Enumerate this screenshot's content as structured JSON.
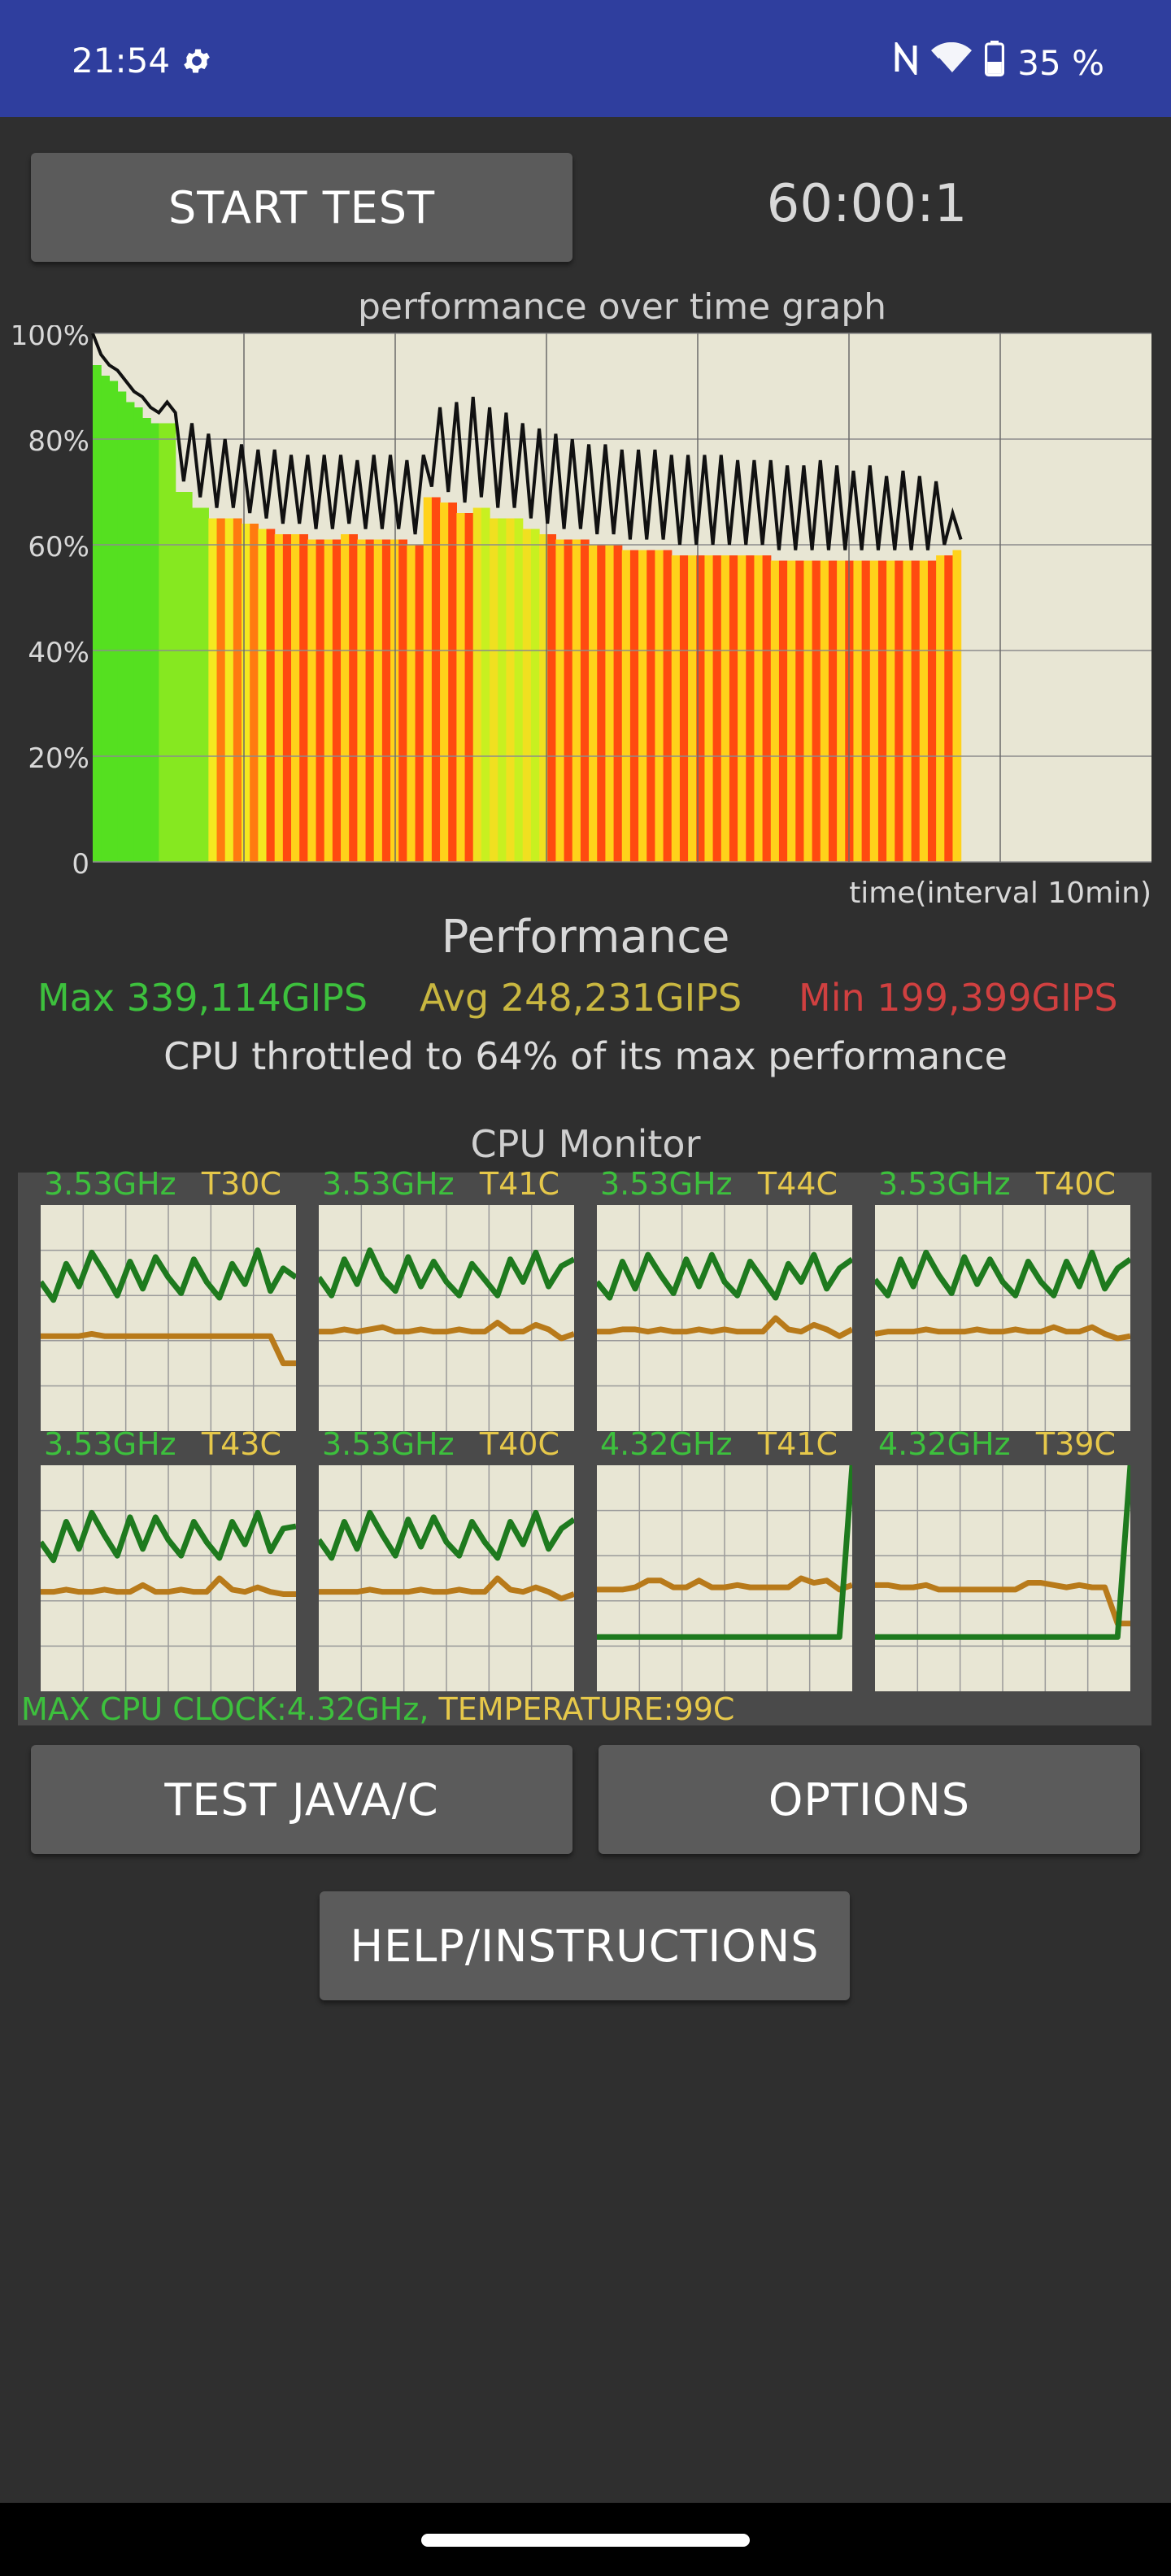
{
  "status": {
    "time": "21:54",
    "battery": "35 %",
    "icons": [
      "gear-icon",
      "nfc-icon",
      "wifi-icon",
      "battery-icon"
    ]
  },
  "controls": {
    "start_label": "START TEST",
    "timer": "60:00:1"
  },
  "graph": {
    "title": "performance over time graph",
    "xlabel": "time(interval 10min)"
  },
  "chart_data": {
    "type": "area",
    "title": "performance over time graph",
    "xlabel": "time(interval 10min)",
    "ylabel": "",
    "y_ticks": [
      "100%",
      "80%",
      "60%",
      "40%",
      "20%",
      "0"
    ],
    "ylim": [
      0,
      100
    ],
    "x_grid_intervals": 7,
    "series": [
      {
        "values": [
          100,
          96,
          94,
          93,
          91,
          89,
          88,
          86,
          85,
          87,
          85,
          72,
          83,
          69,
          81,
          67,
          80,
          67,
          79,
          66,
          78,
          65,
          78,
          64,
          77,
          64,
          77,
          63,
          77,
          63,
          77,
          64,
          76,
          63,
          77,
          63,
          77,
          63,
          76,
          62,
          77,
          71,
          86,
          70,
          87,
          68,
          88,
          69,
          86,
          67,
          85,
          67,
          83,
          65,
          82,
          64,
          81,
          63,
          80,
          63,
          79,
          62,
          79,
          62,
          78,
          61,
          78,
          61,
          78,
          61,
          77,
          60,
          77,
          60,
          77,
          60,
          77,
          60,
          76,
          60,
          76,
          60,
          76,
          59,
          75,
          59,
          75,
          59,
          76,
          59,
          75,
          59,
          74,
          59,
          75,
          59,
          73,
          59,
          74,
          59,
          73,
          59,
          72,
          60,
          66,
          61
        ]
      }
    ],
    "bar_value_scale": {
      "max": "339,114GIPS",
      "avg": "248,231GIPS",
      "min": "199,399GIPS"
    },
    "grid": true,
    "legend": "none"
  },
  "performance": {
    "heading": "Performance",
    "max": "Max 339,114GIPS",
    "avg": "Avg 248,231GIPS",
    "min": "Min 199,399GIPS",
    "throttle": "CPU throttled to 64% of its max performance"
  },
  "cpu_monitor": {
    "title": "CPU Monitor",
    "cores": [
      {
        "freq": "3.53GHz",
        "temp": "T30C",
        "green": [
          0.66,
          0.58,
          0.74,
          0.64,
          0.79,
          0.7,
          0.6,
          0.75,
          0.63,
          0.77,
          0.68,
          0.61,
          0.76,
          0.66,
          0.59,
          0.74,
          0.65,
          0.8,
          0.62,
          0.72,
          0.68
        ],
        "orange": [
          0.42,
          0.42,
          0.42,
          0.42,
          0.43,
          0.42,
          0.42,
          0.42,
          0.42,
          0.42,
          0.42,
          0.42,
          0.42,
          0.42,
          0.42,
          0.42,
          0.42,
          0.42,
          0.42,
          0.3,
          0.3
        ]
      },
      {
        "freq": "3.53GHz",
        "temp": "T41C",
        "green": [
          0.68,
          0.6,
          0.76,
          0.65,
          0.8,
          0.68,
          0.62,
          0.77,
          0.64,
          0.75,
          0.66,
          0.6,
          0.74,
          0.67,
          0.6,
          0.76,
          0.66,
          0.79,
          0.64,
          0.73,
          0.76
        ],
        "orange": [
          0.44,
          0.44,
          0.45,
          0.44,
          0.45,
          0.46,
          0.44,
          0.44,
          0.45,
          0.44,
          0.44,
          0.45,
          0.44,
          0.44,
          0.48,
          0.44,
          0.44,
          0.47,
          0.45,
          0.41,
          0.43
        ]
      },
      {
        "freq": "3.53GHz",
        "temp": "T44C",
        "green": [
          0.66,
          0.59,
          0.75,
          0.63,
          0.78,
          0.69,
          0.61,
          0.76,
          0.64,
          0.78,
          0.66,
          0.6,
          0.75,
          0.67,
          0.59,
          0.74,
          0.66,
          0.78,
          0.63,
          0.72,
          0.76
        ],
        "orange": [
          0.44,
          0.44,
          0.45,
          0.45,
          0.44,
          0.45,
          0.44,
          0.44,
          0.45,
          0.44,
          0.45,
          0.44,
          0.44,
          0.44,
          0.5,
          0.45,
          0.44,
          0.47,
          0.45,
          0.42,
          0.45
        ]
      },
      {
        "freq": "3.53GHz",
        "temp": "T40C",
        "green": [
          0.67,
          0.6,
          0.76,
          0.64,
          0.79,
          0.69,
          0.61,
          0.77,
          0.65,
          0.76,
          0.66,
          0.6,
          0.75,
          0.66,
          0.6,
          0.75,
          0.64,
          0.79,
          0.63,
          0.72,
          0.76
        ],
        "orange": [
          0.43,
          0.44,
          0.44,
          0.44,
          0.45,
          0.44,
          0.44,
          0.44,
          0.45,
          0.44,
          0.44,
          0.45,
          0.44,
          0.44,
          0.46,
          0.44,
          0.44,
          0.46,
          0.43,
          0.41,
          0.42
        ]
      },
      {
        "freq": "3.53GHz",
        "temp": "T43C",
        "green": [
          0.66,
          0.58,
          0.75,
          0.63,
          0.79,
          0.69,
          0.6,
          0.77,
          0.63,
          0.77,
          0.67,
          0.6,
          0.75,
          0.66,
          0.59,
          0.75,
          0.65,
          0.79,
          0.62,
          0.72,
          0.73
        ],
        "orange": [
          0.44,
          0.44,
          0.45,
          0.44,
          0.44,
          0.45,
          0.44,
          0.44,
          0.47,
          0.44,
          0.44,
          0.45,
          0.44,
          0.44,
          0.5,
          0.45,
          0.44,
          0.46,
          0.44,
          0.43,
          0.43
        ]
      },
      {
        "freq": "3.53GHz",
        "temp": "T40C",
        "green": [
          0.67,
          0.59,
          0.75,
          0.63,
          0.79,
          0.69,
          0.6,
          0.76,
          0.64,
          0.77,
          0.66,
          0.6,
          0.75,
          0.66,
          0.59,
          0.75,
          0.65,
          0.79,
          0.63,
          0.72,
          0.76
        ],
        "orange": [
          0.44,
          0.44,
          0.44,
          0.44,
          0.45,
          0.44,
          0.44,
          0.44,
          0.45,
          0.44,
          0.44,
          0.45,
          0.44,
          0.44,
          0.5,
          0.45,
          0.44,
          0.46,
          0.44,
          0.41,
          0.43
        ]
      },
      {
        "freq": "4.32GHz",
        "temp": "T41C",
        "green": [
          0.24,
          0.24,
          0.24,
          0.24,
          0.24,
          0.24,
          0.24,
          0.24,
          0.24,
          0.24,
          0.24,
          0.24,
          0.24,
          0.24,
          0.24,
          0.24,
          0.24,
          0.24,
          0.24,
          0.24,
          1.0
        ],
        "orange": [
          0.45,
          0.45,
          0.45,
          0.46,
          0.49,
          0.49,
          0.46,
          0.46,
          0.49,
          0.46,
          0.46,
          0.47,
          0.46,
          0.46,
          0.46,
          0.46,
          0.5,
          0.48,
          0.49,
          0.45,
          0.47
        ]
      },
      {
        "freq": "4.32GHz",
        "temp": "T39C",
        "green": [
          0.24,
          0.24,
          0.24,
          0.24,
          0.24,
          0.24,
          0.24,
          0.24,
          0.24,
          0.24,
          0.24,
          0.24,
          0.24,
          0.24,
          0.24,
          0.24,
          0.24,
          0.24,
          0.24,
          0.24,
          1.0
        ],
        "orange": [
          0.47,
          0.47,
          0.46,
          0.46,
          0.47,
          0.45,
          0.45,
          0.45,
          0.45,
          0.45,
          0.45,
          0.45,
          0.48,
          0.48,
          0.47,
          0.46,
          0.47,
          0.46,
          0.46,
          0.3,
          0.3
        ]
      }
    ],
    "max_clock": "MAX CPU CLOCK:4.32GHz,",
    "temperature": "TEMPERATURE:99C"
  },
  "buttons": {
    "java_label": "TEST JAVA/C",
    "options_label": "OPTIONS",
    "help_label": "HELP/INSTRUCTIONS"
  },
  "colors": {
    "status_bar": "#2f3e9e",
    "background": "#2f2f2f",
    "button": "#5b5b5b",
    "max": "#3dc03d",
    "avg": "#c8b640",
    "min": "#d04040",
    "graph_bg": "#e8e6d4"
  }
}
